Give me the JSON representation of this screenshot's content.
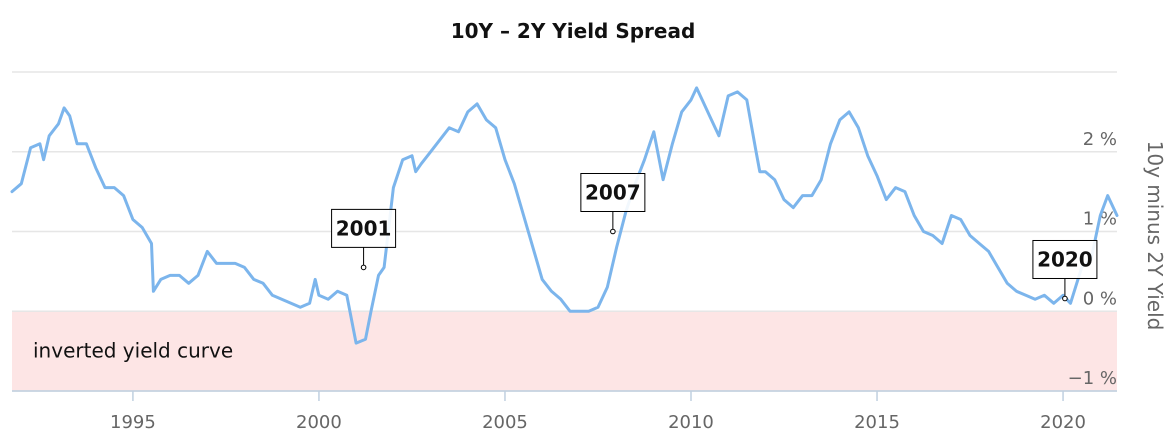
{
  "chart_data": {
    "type": "line",
    "title": "10Y – 2Y Yield Spread",
    "ylabel": "10y minus 2Y Yield",
    "xlabel": "",
    "xlim": [
      1991.75,
      2021.45
    ],
    "ylim": [
      -1.0,
      3.0
    ],
    "x_ticks": [
      1995,
      2000,
      2005,
      2010,
      2015,
      2020
    ],
    "y_ticks": [
      {
        "value": -1,
        "label": "−1 %"
      },
      {
        "value": 0,
        "label": "0 %"
      },
      {
        "value": 1,
        "label": "1 %"
      },
      {
        "value": 2,
        "label": "2 %"
      }
    ],
    "grid": true,
    "color": "#7cb5ec",
    "band": {
      "from": -1.0,
      "to": 0.0,
      "color": "#fde5e5",
      "label": "inverted yield curve"
    },
    "annotations": [
      {
        "label": "2001",
        "x": 2001.2,
        "y": 0.55
      },
      {
        "label": "2007",
        "x": 2007.9,
        "y": 1.0
      },
      {
        "label": "2020",
        "x": 2020.05,
        "y": 0.16
      }
    ],
    "series": [
      {
        "values": [
          [
            1991.75,
            1.5
          ],
          [
            1992.0,
            1.6
          ],
          [
            1992.25,
            2.05
          ],
          [
            1992.5,
            2.1
          ],
          [
            1992.6,
            1.9
          ],
          [
            1992.75,
            2.2
          ],
          [
            1993.0,
            2.35
          ],
          [
            1993.15,
            2.55
          ],
          [
            1993.3,
            2.45
          ],
          [
            1993.5,
            2.1
          ],
          [
            1993.75,
            2.1
          ],
          [
            1994.0,
            1.8
          ],
          [
            1994.25,
            1.55
          ],
          [
            1994.5,
            1.55
          ],
          [
            1994.75,
            1.45
          ],
          [
            1995.0,
            1.15
          ],
          [
            1995.25,
            1.05
          ],
          [
            1995.5,
            0.85
          ],
          [
            1995.55,
            0.25
          ],
          [
            1995.75,
            0.4
          ],
          [
            1996.0,
            0.45
          ],
          [
            1996.25,
            0.45
          ],
          [
            1996.5,
            0.35
          ],
          [
            1996.75,
            0.45
          ],
          [
            1997.0,
            0.75
          ],
          [
            1997.25,
            0.6
          ],
          [
            1997.5,
            0.6
          ],
          [
            1997.75,
            0.6
          ],
          [
            1998.0,
            0.55
          ],
          [
            1998.25,
            0.4
          ],
          [
            1998.5,
            0.35
          ],
          [
            1998.75,
            0.2
          ],
          [
            1999.0,
            0.15
          ],
          [
            1999.25,
            0.1
          ],
          [
            1999.5,
            0.05
          ],
          [
            1999.75,
            0.1
          ],
          [
            1999.9,
            0.4
          ],
          [
            2000.0,
            0.2
          ],
          [
            2000.25,
            0.15
          ],
          [
            2000.5,
            0.25
          ],
          [
            2000.75,
            0.2
          ],
          [
            2001.0,
            -0.4
          ],
          [
            2001.25,
            -0.35
          ],
          [
            2001.4,
            0.0
          ],
          [
            2001.6,
            0.45
          ],
          [
            2001.75,
            0.55
          ],
          [
            2002.0,
            1.55
          ],
          [
            2002.25,
            1.9
          ],
          [
            2002.5,
            1.95
          ],
          [
            2002.6,
            1.75
          ],
          [
            2002.75,
            1.85
          ],
          [
            2003.0,
            2.0
          ],
          [
            2003.25,
            2.15
          ],
          [
            2003.5,
            2.3
          ],
          [
            2003.75,
            2.25
          ],
          [
            2004.0,
            2.5
          ],
          [
            2004.25,
            2.6
          ],
          [
            2004.5,
            2.4
          ],
          [
            2004.75,
            2.3
          ],
          [
            2005.0,
            1.9
          ],
          [
            2005.25,
            1.6
          ],
          [
            2005.5,
            1.2
          ],
          [
            2005.75,
            0.8
          ],
          [
            2006.0,
            0.4
          ],
          [
            2006.25,
            0.25
          ],
          [
            2006.5,
            0.15
          ],
          [
            2006.75,
            0.0
          ],
          [
            2007.0,
            0.0
          ],
          [
            2007.25,
            0.0
          ],
          [
            2007.5,
            0.05
          ],
          [
            2007.75,
            0.3
          ],
          [
            2008.0,
            0.8
          ],
          [
            2008.25,
            1.25
          ],
          [
            2008.5,
            1.6
          ],
          [
            2008.75,
            1.9
          ],
          [
            2009.0,
            2.25
          ],
          [
            2009.25,
            1.65
          ],
          [
            2009.5,
            2.1
          ],
          [
            2009.75,
            2.5
          ],
          [
            2010.0,
            2.65
          ],
          [
            2010.15,
            2.8
          ],
          [
            2010.3,
            2.65
          ],
          [
            2010.5,
            2.45
          ],
          [
            2010.75,
            2.2
          ],
          [
            2011.0,
            2.7
          ],
          [
            2011.25,
            2.75
          ],
          [
            2011.5,
            2.65
          ],
          [
            2011.75,
            2.0
          ],
          [
            2011.85,
            1.75
          ],
          [
            2012.0,
            1.75
          ],
          [
            2012.25,
            1.65
          ],
          [
            2012.5,
            1.4
          ],
          [
            2012.75,
            1.3
          ],
          [
            2013.0,
            1.45
          ],
          [
            2013.25,
            1.45
          ],
          [
            2013.5,
            1.65
          ],
          [
            2013.75,
            2.1
          ],
          [
            2014.0,
            2.4
          ],
          [
            2014.25,
            2.5
          ],
          [
            2014.5,
            2.3
          ],
          [
            2014.75,
            1.95
          ],
          [
            2015.0,
            1.7
          ],
          [
            2015.25,
            1.4
          ],
          [
            2015.5,
            1.55
          ],
          [
            2015.75,
            1.5
          ],
          [
            2016.0,
            1.2
          ],
          [
            2016.25,
            1.0
          ],
          [
            2016.5,
            0.95
          ],
          [
            2016.75,
            0.85
          ],
          [
            2017.0,
            1.2
          ],
          [
            2017.25,
            1.15
          ],
          [
            2017.5,
            0.95
          ],
          [
            2017.75,
            0.85
          ],
          [
            2018.0,
            0.75
          ],
          [
            2018.25,
            0.55
          ],
          [
            2018.5,
            0.35
          ],
          [
            2018.75,
            0.25
          ],
          [
            2019.0,
            0.2
          ],
          [
            2019.25,
            0.15
          ],
          [
            2019.5,
            0.2
          ],
          [
            2019.75,
            0.1
          ],
          [
            2020.0,
            0.2
          ],
          [
            2020.2,
            0.1
          ],
          [
            2020.5,
            0.55
          ],
          [
            2020.75,
            0.65
          ],
          [
            2021.0,
            1.2
          ],
          [
            2021.2,
            1.45
          ],
          [
            2021.45,
            1.2
          ]
        ]
      }
    ]
  }
}
